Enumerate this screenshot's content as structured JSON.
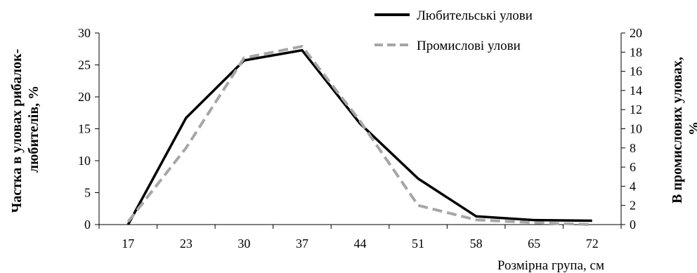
{
  "chart_data": {
    "type": "line",
    "categories": [
      "17",
      "23",
      "30",
      "37",
      "44",
      "51",
      "58",
      "65",
      "72"
    ],
    "series": [
      {
        "name": "Любительські улови",
        "axis": "left",
        "style": "solid",
        "color": "#000000",
        "values": [
          0,
          16.7,
          25.7,
          27.3,
          15.8,
          7.2,
          1.3,
          0.7,
          0.6
        ]
      },
      {
        "name": "Промислові улови",
        "axis": "right",
        "style": "dashed",
        "color": "#a6a6a6",
        "values": [
          0.3,
          8.0,
          17.4,
          18.6,
          10.8,
          2.0,
          0.5,
          0.2,
          0.0
        ]
      }
    ],
    "xlabel": "Розмірна група, см",
    "ylabel_left": "Частка в  уловах рибалок-любителів, %",
    "ylabel_left_lines": [
      "Частка в  уловах рибалок-",
      "любителів, %"
    ],
    "ylabel_right": "В промислових уловах, %",
    "ylabel_right_lines": [
      "В промислових уловах,",
      "%"
    ],
    "ylim_left": [
      0,
      30
    ],
    "yticks_left": [
      "0",
      "5",
      "10",
      "15",
      "20",
      "25",
      "30"
    ],
    "ylim_right": [
      0,
      20
    ],
    "yticks_right": [
      "0",
      "2",
      "4",
      "6",
      "8",
      "10",
      "12",
      "14",
      "16",
      "18",
      "20"
    ],
    "grid": false,
    "legend_position": "top-right"
  }
}
